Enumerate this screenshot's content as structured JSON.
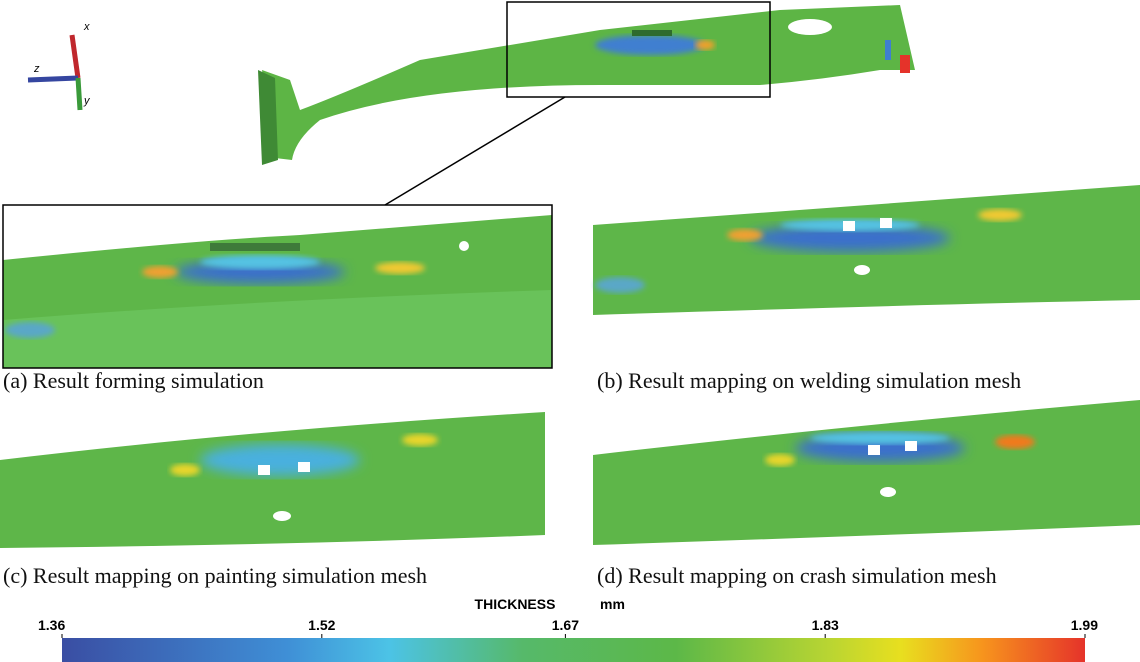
{
  "axes": {
    "x": "x",
    "y": "y",
    "z": "z"
  },
  "panels": [
    {
      "caption": "(a) Result forming simulation"
    },
    {
      "caption": "(b) Result mapping on welding simulation mesh"
    },
    {
      "caption": "(c) Result mapping on painting simulation mesh"
    },
    {
      "caption": "(d) Result mapping on crash simulation mesh"
    }
  ],
  "colorbar": {
    "title": "THICKNESS",
    "unit": "mm",
    "ticks": [
      1.36,
      1.52,
      1.67,
      1.83,
      1.99
    ]
  }
}
